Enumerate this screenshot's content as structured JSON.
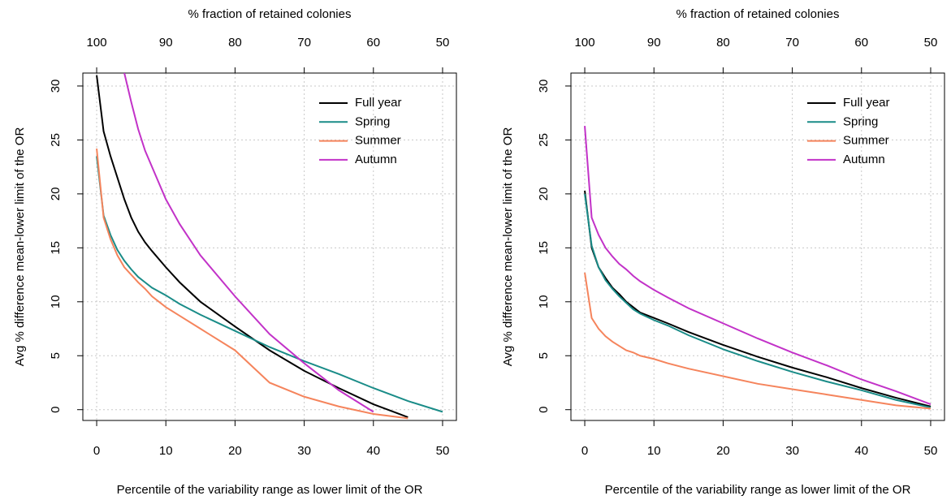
{
  "chart_data": [
    {
      "type": "line",
      "x_label": "Percentile of the variability range as lower limit of the OR",
      "y_label": "Avg % difference mean-lower limit of the OR",
      "x2_label": "% fraction of retained colonies",
      "x": [
        0,
        1,
        2,
        3,
        4,
        5,
        6,
        7,
        8,
        10,
        12,
        15,
        20,
        25,
        30,
        35,
        40,
        45,
        50
      ],
      "series": [
        {
          "name": "Full year",
          "color": "#000000",
          "values": [
            31,
            25.8,
            23.5,
            21.5,
            19.5,
            17.8,
            16.5,
            15.5,
            14.7,
            13.2,
            11.8,
            10,
            7.7,
            5.5,
            3.6,
            2,
            0.5,
            -0.7,
            null
          ]
        },
        {
          "name": "Spring",
          "color": "#1a8c88",
          "values": [
            23.5,
            18,
            16.2,
            14.8,
            13.8,
            13,
            12.3,
            11.8,
            11.3,
            10.6,
            9.8,
            8.8,
            7.3,
            5.8,
            4.5,
            3.3,
            2,
            0.8,
            -0.2
          ]
        },
        {
          "name": "Summer",
          "color": "#f5845c",
          "values": [
            24.2,
            17.8,
            15.8,
            14.3,
            13.2,
            12.5,
            11.8,
            11.2,
            10.5,
            9.5,
            8.7,
            7.5,
            5.5,
            2.5,
            1.2,
            0.3,
            -0.4,
            -0.8,
            null
          ]
        },
        {
          "name": "Autumn",
          "color": "#c232c8",
          "values": [
            null,
            null,
            null,
            null,
            31.2,
            28.5,
            26,
            24,
            22.5,
            19.5,
            17.2,
            14.3,
            10.5,
            7,
            4.3,
            1.8,
            -0.2,
            null,
            null
          ]
        }
      ],
      "xlim": [
        -2,
        52
      ],
      "xticks": [
        0,
        10,
        20,
        30,
        40,
        50
      ],
      "x2lim": [
        102,
        48
      ],
      "x2ticks": [
        100,
        90,
        80,
        70,
        60,
        50
      ],
      "ylim": [
        -1,
        31.2
      ],
      "yticks": [
        0,
        5,
        10,
        15,
        20,
        25,
        30
      ],
      "grid": true,
      "legend": "topright"
    },
    {
      "type": "line",
      "x_label": "Percentile of the variability range as lower limit of the OR",
      "y_label": "Avg % difference mean-lower limit of the OR",
      "x2_label": "% fraction of retained colonies",
      "x": [
        0,
        1,
        2,
        3,
        4,
        5,
        6,
        7,
        8,
        10,
        12,
        15,
        20,
        25,
        30,
        35,
        40,
        45,
        50
      ],
      "series": [
        {
          "name": "Full year",
          "color": "#000000",
          "values": [
            20.3,
            15,
            13.2,
            12.2,
            11.3,
            10.7,
            10,
            9.5,
            9,
            8.5,
            8,
            7.2,
            6,
            4.9,
            3.9,
            3,
            2,
            1.1,
            0.3
          ]
        },
        {
          "name": "Spring",
          "color": "#1a8c88",
          "values": [
            20,
            15.2,
            13.2,
            12,
            11.2,
            10.5,
            9.9,
            9.3,
            8.9,
            8.3,
            7.8,
            6.9,
            5.6,
            4.5,
            3.5,
            2.6,
            1.8,
            0.9,
            0.2
          ]
        },
        {
          "name": "Summer",
          "color": "#f5845c",
          "values": [
            12.7,
            8.5,
            7.5,
            6.8,
            6.3,
            5.9,
            5.5,
            5.3,
            5,
            4.7,
            4.3,
            3.8,
            3.1,
            2.4,
            1.9,
            1.4,
            0.9,
            0.4,
            0.1
          ]
        },
        {
          "name": "Autumn",
          "color": "#c232c8",
          "values": [
            26.3,
            17.8,
            16.2,
            15,
            14.2,
            13.5,
            13,
            12.4,
            11.9,
            11.1,
            10.4,
            9.4,
            8,
            6.6,
            5.3,
            4.1,
            2.8,
            1.7,
            0.5
          ]
        }
      ],
      "xlim": [
        -2,
        52
      ],
      "xticks": [
        0,
        10,
        20,
        30,
        40,
        50
      ],
      "x2lim": [
        102,
        48
      ],
      "x2ticks": [
        100,
        90,
        80,
        70,
        60,
        50
      ],
      "ylim": [
        -1,
        31.2
      ],
      "yticks": [
        0,
        5,
        10,
        15,
        20,
        25,
        30
      ],
      "grid": true,
      "legend": "topright"
    }
  ]
}
